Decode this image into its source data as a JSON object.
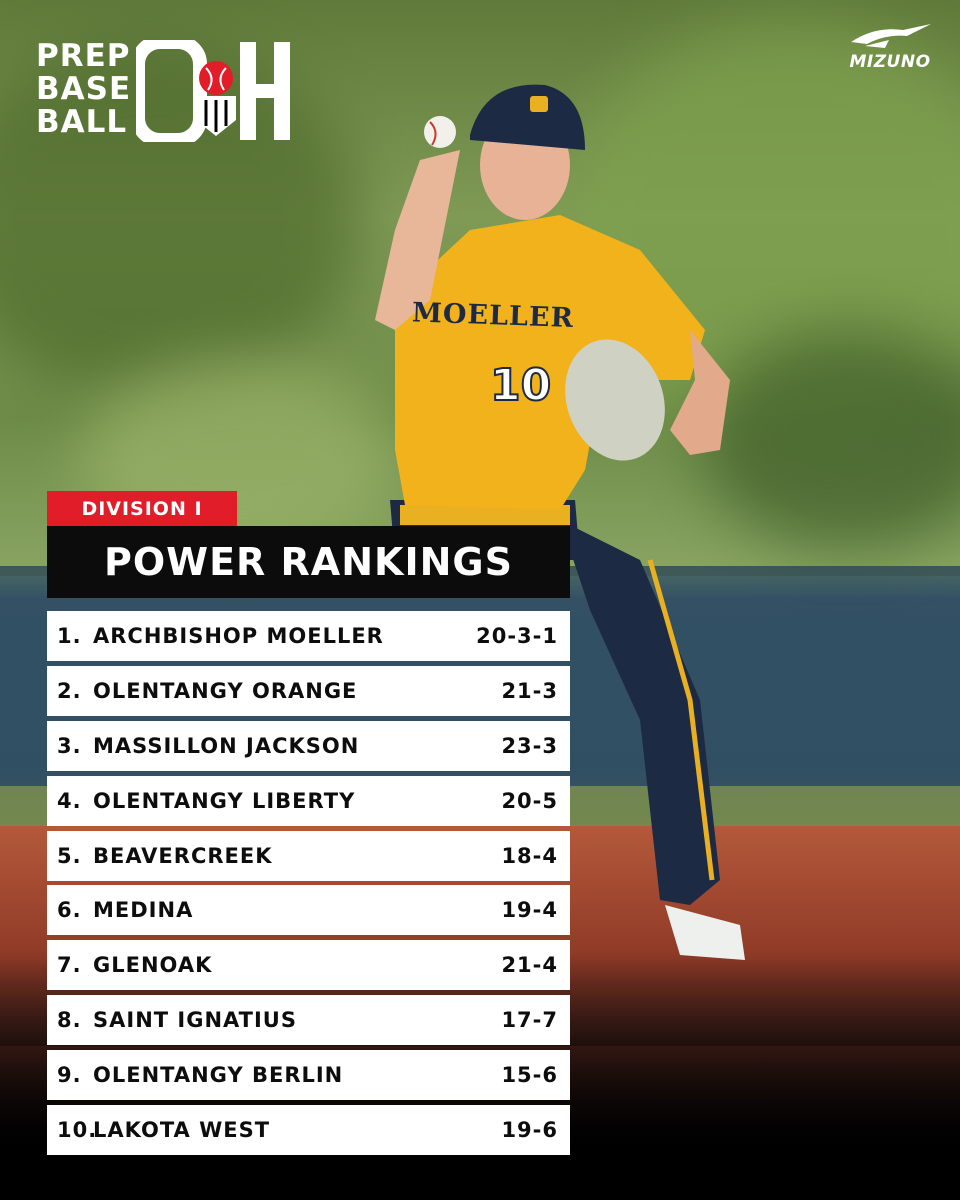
{
  "branding": {
    "logo_lines": [
      "PREP",
      "BASE",
      "BALL"
    ],
    "logo_state": "OH",
    "sponsor": "MIZUNO"
  },
  "player": {
    "jersey_text": "MOELLER",
    "jersey_number": "10"
  },
  "division_label": "DIVISION I",
  "title": "POWER RANKINGS",
  "rankings": [
    {
      "rank": "1.",
      "team": "ARCHBISHOP MOELLER",
      "record": "20-3-1"
    },
    {
      "rank": "2.",
      "team": "OLENTANGY ORANGE",
      "record": "21-3"
    },
    {
      "rank": "3.",
      "team": "MASSILLON JACKSON",
      "record": "23-3"
    },
    {
      "rank": "4.",
      "team": "OLENTANGY LIBERTY",
      "record": "20-5"
    },
    {
      "rank": "5.",
      "team": "BEAVERCREEK",
      "record": "18-4"
    },
    {
      "rank": "6.",
      "team": "MEDINA",
      "record": "19-4"
    },
    {
      "rank": "7.",
      "team": "GLENOAK",
      "record": "21-4"
    },
    {
      "rank": "8.",
      "team": "SAINT IGNATIUS",
      "record": "17-7"
    },
    {
      "rank": "9.",
      "team": "OLENTANGY BERLIN",
      "record": "15-6"
    },
    {
      "rank": "10.",
      "team": "LAKOTA WEST",
      "record": "19-6"
    }
  ],
  "colors": {
    "accent_red": "#e11d2a",
    "title_bg": "#0c0c0c",
    "row_bg": "#ffffff",
    "jersey_gold": "#f2b21c",
    "navy": "#1d2a44"
  }
}
